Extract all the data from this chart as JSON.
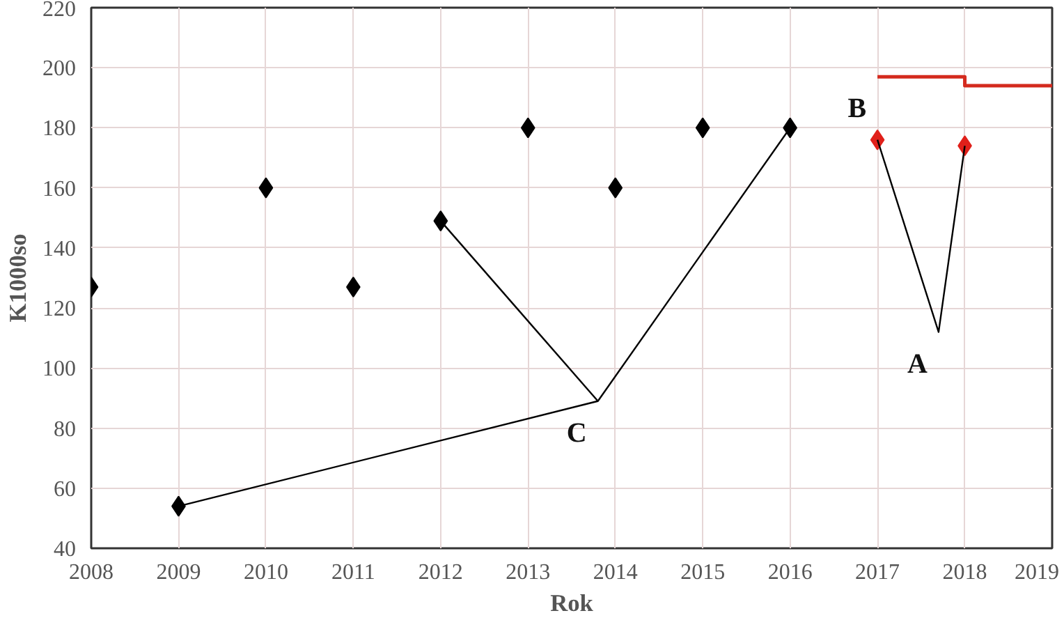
{
  "chart_data": {
    "type": "scatter",
    "xlabel": "Rok",
    "ylabel": "K1000so",
    "xlim": [
      2008,
      2019
    ],
    "ylim": [
      40,
      220
    ],
    "xticks": [
      2008,
      2009,
      2010,
      2011,
      2012,
      2013,
      2014,
      2015,
      2016,
      2017,
      2018,
      2019
    ],
    "yticks": [
      40,
      60,
      80,
      100,
      120,
      140,
      160,
      180,
      200,
      220
    ],
    "grid": true,
    "marker": "diamond",
    "series": [
      {
        "color": "#000000",
        "x": [
          2008,
          2009,
          2010,
          2011,
          2012,
          2013,
          2014,
          2015,
          2016
        ],
        "values": [
          127,
          54,
          160,
          127,
          149,
          180,
          160,
          180,
          180
        ]
      },
      {
        "color": "#e0201a",
        "x": [
          2017,
          2018
        ],
        "values": [
          176,
          174
        ]
      },
      {
        "type": "step",
        "color": "#d42a1e",
        "marker": "none",
        "x": [
          2017,
          2018,
          2019
        ],
        "values": [
          197,
          194,
          194
        ]
      },
      {
        "type": "line",
        "color": "#000000",
        "marker": "none",
        "x": [
          2009,
          2013.8,
          2016
        ],
        "values": [
          54,
          89,
          180
        ]
      },
      {
        "type": "line",
        "color": "#000000",
        "marker": "none",
        "x": [
          2012,
          2013.8
        ],
        "values": [
          149,
          89
        ]
      },
      {
        "type": "line",
        "color": "#000000",
        "marker": "none",
        "x": [
          2017,
          2017.7,
          2018
        ],
        "values": [
          176,
          112,
          174
        ]
      }
    ],
    "annotations": [
      {
        "text": "A",
        "x": 2017.7,
        "y": 112
      },
      {
        "text": "B",
        "x": 2017,
        "y": 197
      },
      {
        "text": "C",
        "x": 2013.8,
        "y": 89
      }
    ]
  }
}
